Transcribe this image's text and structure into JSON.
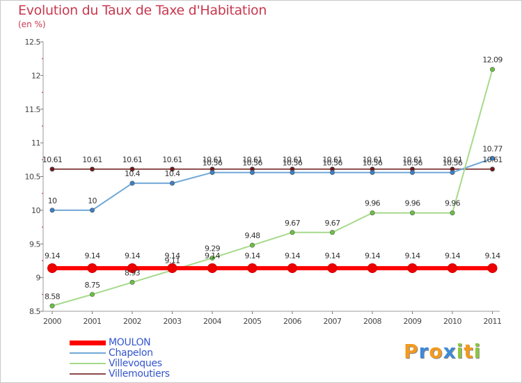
{
  "title": "Evolution du Taux de Taxe d'Habitation",
  "unit": "(en %)",
  "logo": {
    "letters": [
      "P",
      "r",
      "o",
      "x",
      "i",
      "t",
      "i"
    ],
    "colors": [
      "#f39a1e",
      "#3e8ad6",
      "#f39a1e",
      "#3e8ad6",
      "#8cc63f",
      "#f39a1e",
      "#8cc63f"
    ]
  },
  "chart_data": {
    "type": "line",
    "title": "Evolution du Taux de Taxe d'Habitation",
    "ylabel": "(en %)",
    "xlabel": "",
    "ylim": [
      8.5,
      12.5
    ],
    "yticks": [
      "8.5",
      "9",
      "9.5",
      "10",
      "10.5",
      "11",
      "11.5",
      "12",
      "12.5"
    ],
    "x": [
      "2000",
      "2001",
      "2002",
      "2003",
      "2004",
      "2005",
      "2006",
      "2007",
      "2008",
      "2009",
      "2010",
      "2011"
    ],
    "series": [
      {
        "name": "Villemoutiers",
        "color": "#8b4a4a",
        "point_color": "#6e1a1a",
        "values": [
          10.61,
          10.61,
          10.61,
          10.61,
          10.61,
          10.61,
          10.61,
          10.61,
          10.61,
          10.61,
          10.61,
          10.61
        ],
        "labels": [
          "10.61",
          "10.61",
          "10.61",
          "10.61",
          "10.61",
          "10.61",
          "10.61",
          "10.61",
          "10.61",
          "10.61",
          "10.61",
          "10.61"
        ]
      },
      {
        "name": "Chapelon",
        "color": "#6fa8d8",
        "point_color": "#3d7fc4",
        "values": [
          10,
          10,
          10.4,
          10.4,
          10.56,
          10.56,
          10.56,
          10.56,
          10.56,
          10.56,
          10.56,
          10.77
        ],
        "labels": [
          "10",
          "10",
          "10.4",
          "10.4",
          "10.56",
          "10.56",
          "10.56",
          "10.56",
          "10.56",
          "10.56",
          "10.56",
          "10.77"
        ]
      },
      {
        "name": "Villevoques",
        "color": "#a6d98a",
        "point_color": "#6cc045",
        "values": [
          8.58,
          8.75,
          8.93,
          9.11,
          9.29,
          9.48,
          9.67,
          9.67,
          9.96,
          9.96,
          9.96,
          12.09
        ],
        "labels": [
          "8.58",
          "8.75",
          "8.93",
          "9.11",
          "9.29",
          "9.48",
          "9.67",
          "9.67",
          "9.96",
          "9.96",
          "9.96",
          "12.09"
        ]
      },
      {
        "name": "MOULON",
        "color": "#ff0000",
        "point_color": "#ee0000",
        "values": [
          9.14,
          9.14,
          9.14,
          9.14,
          9.14,
          9.14,
          9.14,
          9.14,
          9.14,
          9.14,
          9.14,
          9.14
        ],
        "labels": [
          "9.14",
          "9.14",
          "9.14",
          "9.14",
          "9.14",
          "9.14",
          "9.14",
          "9.14",
          "9.14",
          "9.14",
          "9.14",
          "9.14"
        ]
      }
    ],
    "legend": [
      "MOULON",
      "Chapelon",
      "Villevoques",
      "Villemoutiers"
    ]
  }
}
